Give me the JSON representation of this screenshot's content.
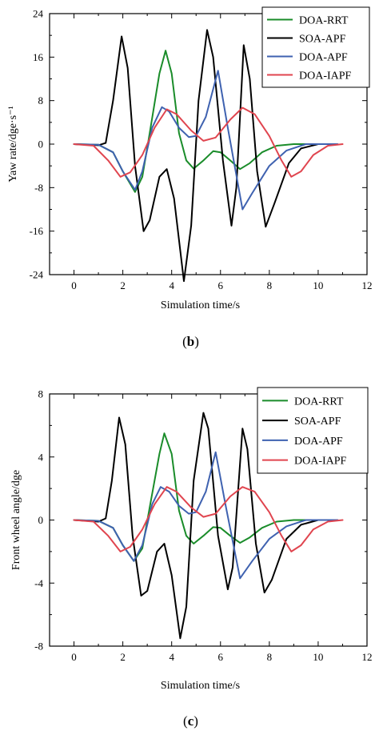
{
  "chart_data": [
    {
      "type": "line",
      "panel_label": {
        "open": "(",
        "letter": "b",
        "close": ")"
      },
      "xlabel": "Simulation time/s",
      "ylabel": "Yaw rate/dge·s⁻¹",
      "xlim": [
        -1,
        12
      ],
      "ylim": [
        -24,
        24
      ],
      "xticks": [
        0,
        2,
        4,
        6,
        8,
        10,
        12
      ],
      "yticks": [
        -24,
        -16,
        -8,
        0,
        8,
        16,
        24
      ],
      "legend_position": "top-right",
      "series": [
        {
          "name": "DOA-RRT",
          "color": "#1a8c2a",
          "points": [
            [
              0,
              0
            ],
            [
              1.0,
              -0.1
            ],
            [
              1.6,
              -1.5
            ],
            [
              2.0,
              -5.0
            ],
            [
              2.5,
              -8.8
            ],
            [
              2.8,
              -6.0
            ],
            [
              3.1,
              2.0
            ],
            [
              3.5,
              13.0
            ],
            [
              3.75,
              17.2
            ],
            [
              4.0,
              13.0
            ],
            [
              4.3,
              2.0
            ],
            [
              4.6,
              -3.0
            ],
            [
              4.9,
              -4.5
            ],
            [
              5.3,
              -3.0
            ],
            [
              5.7,
              -1.3
            ],
            [
              6.0,
              -1.5
            ],
            [
              6.4,
              -3.0
            ],
            [
              6.8,
              -4.6
            ],
            [
              7.2,
              -3.5
            ],
            [
              7.7,
              -1.5
            ],
            [
              8.3,
              -0.3
            ],
            [
              9.0,
              0
            ],
            [
              10.6,
              0
            ]
          ]
        },
        {
          "name": "SOA-APF",
          "color": "#000000",
          "points": [
            [
              0,
              0
            ],
            [
              1.0,
              -0.2
            ],
            [
              1.3,
              0.2
            ],
            [
              1.6,
              8.0
            ],
            [
              1.95,
              19.8
            ],
            [
              2.2,
              14.0
            ],
            [
              2.5,
              -4.0
            ],
            [
              2.85,
              -16.0
            ],
            [
              3.1,
              -14.0
            ],
            [
              3.5,
              -6.0
            ],
            [
              3.8,
              -4.6
            ],
            [
              4.1,
              -10.0
            ],
            [
              4.5,
              -25.2
            ],
            [
              4.8,
              -15.0
            ],
            [
              5.1,
              8.0
            ],
            [
              5.45,
              21.0
            ],
            [
              5.7,
              16.0
            ],
            [
              6.1,
              -3.0
            ],
            [
              6.45,
              -15.0
            ],
            [
              6.65,
              -8.0
            ],
            [
              6.95,
              18.2
            ],
            [
              7.2,
              12.0
            ],
            [
              7.5,
              -5.0
            ],
            [
              7.85,
              -15.2
            ],
            [
              8.2,
              -11.0
            ],
            [
              8.8,
              -3.5
            ],
            [
              9.3,
              -0.8
            ],
            [
              10.0,
              0
            ],
            [
              10.7,
              0
            ]
          ]
        },
        {
          "name": "DOA-APF",
          "color": "#3f62b0",
          "points": [
            [
              0,
              0
            ],
            [
              1.0,
              -0.1
            ],
            [
              1.6,
              -1.5
            ],
            [
              2.0,
              -5.0
            ],
            [
              2.5,
              -8.4
            ],
            [
              2.8,
              -5.0
            ],
            [
              3.2,
              3.0
            ],
            [
              3.6,
              6.8
            ],
            [
              3.9,
              6.0
            ],
            [
              4.3,
              3.0
            ],
            [
              4.7,
              1.3
            ],
            [
              5.0,
              1.5
            ],
            [
              5.4,
              5.0
            ],
            [
              5.9,
              13.5
            ],
            [
              6.3,
              3.0
            ],
            [
              6.9,
              -12.0
            ],
            [
              7.3,
              -9.0
            ],
            [
              8.0,
              -4.0
            ],
            [
              8.7,
              -1.2
            ],
            [
              9.5,
              0
            ],
            [
              10.8,
              0
            ]
          ]
        },
        {
          "name": "DOA-IAPF",
          "color": "#e0454f",
          "points": [
            [
              0,
              0
            ],
            [
              0.8,
              -0.3
            ],
            [
              1.4,
              -3.0
            ],
            [
              1.9,
              -6.0
            ],
            [
              2.3,
              -5.2
            ],
            [
              2.8,
              -2.0
            ],
            [
              3.3,
              3.0
            ],
            [
              3.8,
              6.4
            ],
            [
              4.2,
              5.5
            ],
            [
              4.8,
              2.5
            ],
            [
              5.3,
              0.6
            ],
            [
              5.8,
              1.2
            ],
            [
              6.4,
              4.5
            ],
            [
              6.9,
              6.7
            ],
            [
              7.4,
              5.5
            ],
            [
              8.0,
              1.5
            ],
            [
              8.5,
              -3.0
            ],
            [
              8.9,
              -6.0
            ],
            [
              9.3,
              -5.0
            ],
            [
              9.8,
              -2.0
            ],
            [
              10.4,
              -0.3
            ],
            [
              11.0,
              0
            ]
          ]
        }
      ]
    },
    {
      "type": "line",
      "panel_label": {
        "open": "(",
        "letter": "c",
        "close": ")"
      },
      "xlabel": "Simulation time/s",
      "ylabel": "Front wheel angle/dge",
      "xlim": [
        -1,
        12
      ],
      "ylim": [
        -8,
        8
      ],
      "xticks": [
        0,
        2,
        4,
        6,
        8,
        10,
        12
      ],
      "yticks": [
        -8,
        -4,
        0,
        4,
        8
      ],
      "legend_position": "top-right",
      "series": [
        {
          "name": "DOA-RRT",
          "color": "#1a8c2a",
          "points": [
            [
              0,
              0
            ],
            [
              1.0,
              -0.05
            ],
            [
              1.6,
              -0.5
            ],
            [
              2.0,
              -1.6
            ],
            [
              2.45,
              -2.6
            ],
            [
              2.8,
              -1.8
            ],
            [
              3.1,
              0.8
            ],
            [
              3.5,
              4.2
            ],
            [
              3.7,
              5.5
            ],
            [
              4.0,
              4.2
            ],
            [
              4.3,
              0.6
            ],
            [
              4.6,
              -1.0
            ],
            [
              4.9,
              -1.5
            ],
            [
              5.3,
              -1.0
            ],
            [
              5.7,
              -0.45
            ],
            [
              6.0,
              -0.5
            ],
            [
              6.4,
              -1.0
            ],
            [
              6.8,
              -1.45
            ],
            [
              7.2,
              -1.1
            ],
            [
              7.7,
              -0.5
            ],
            [
              8.3,
              -0.1
            ],
            [
              9.0,
              0
            ],
            [
              10.6,
              0
            ]
          ]
        },
        {
          "name": "SOA-APF",
          "color": "#000000",
          "points": [
            [
              0,
              0
            ],
            [
              1.0,
              -0.1
            ],
            [
              1.3,
              0.1
            ],
            [
              1.55,
              2.5
            ],
            [
              1.85,
              6.5
            ],
            [
              2.1,
              4.8
            ],
            [
              2.4,
              -1.0
            ],
            [
              2.75,
              -4.8
            ],
            [
              3.0,
              -4.5
            ],
            [
              3.4,
              -2.0
            ],
            [
              3.7,
              -1.5
            ],
            [
              4.0,
              -3.5
            ],
            [
              4.35,
              -7.5
            ],
            [
              4.6,
              -5.5
            ],
            [
              4.9,
              2.5
            ],
            [
              5.3,
              6.8
            ],
            [
              5.5,
              5.8
            ],
            [
              5.9,
              -1.0
            ],
            [
              6.3,
              -4.4
            ],
            [
              6.5,
              -3.0
            ],
            [
              6.9,
              5.8
            ],
            [
              7.1,
              4.5
            ],
            [
              7.45,
              -1.5
            ],
            [
              7.8,
              -4.6
            ],
            [
              8.1,
              -3.8
            ],
            [
              8.7,
              -1.2
            ],
            [
              9.3,
              -0.3
            ],
            [
              10.0,
              0
            ],
            [
              10.7,
              0
            ]
          ]
        },
        {
          "name": "DOA-APF",
          "color": "#3f62b0",
          "points": [
            [
              0,
              0
            ],
            [
              1.0,
              -0.05
            ],
            [
              1.6,
              -0.5
            ],
            [
              2.0,
              -1.6
            ],
            [
              2.45,
              -2.6
            ],
            [
              2.8,
              -1.6
            ],
            [
              3.2,
              1.0
            ],
            [
              3.55,
              2.1
            ],
            [
              3.9,
              1.8
            ],
            [
              4.3,
              0.9
            ],
            [
              4.7,
              0.4
            ],
            [
              5.0,
              0.5
            ],
            [
              5.4,
              1.8
            ],
            [
              5.8,
              4.3
            ],
            [
              6.2,
              1.0
            ],
            [
              6.8,
              -3.7
            ],
            [
              7.3,
              -2.6
            ],
            [
              8.0,
              -1.2
            ],
            [
              8.7,
              -0.4
            ],
            [
              9.5,
              0
            ],
            [
              10.8,
              0
            ]
          ]
        },
        {
          "name": "DOA-IAPF",
          "color": "#e0454f",
          "points": [
            [
              0,
              0
            ],
            [
              0.8,
              -0.1
            ],
            [
              1.4,
              -1.0
            ],
            [
              1.9,
              -2.0
            ],
            [
              2.3,
              -1.7
            ],
            [
              2.8,
              -0.6
            ],
            [
              3.3,
              1.0
            ],
            [
              3.8,
              2.1
            ],
            [
              4.2,
              1.8
            ],
            [
              4.8,
              0.8
            ],
            [
              5.3,
              0.2
            ],
            [
              5.8,
              0.4
            ],
            [
              6.4,
              1.5
            ],
            [
              6.9,
              2.1
            ],
            [
              7.4,
              1.8
            ],
            [
              8.0,
              0.5
            ],
            [
              8.5,
              -1.0
            ],
            [
              8.9,
              -2.0
            ],
            [
              9.3,
              -1.6
            ],
            [
              9.8,
              -0.6
            ],
            [
              10.4,
              -0.1
            ],
            [
              11.0,
              0
            ]
          ]
        }
      ]
    }
  ]
}
